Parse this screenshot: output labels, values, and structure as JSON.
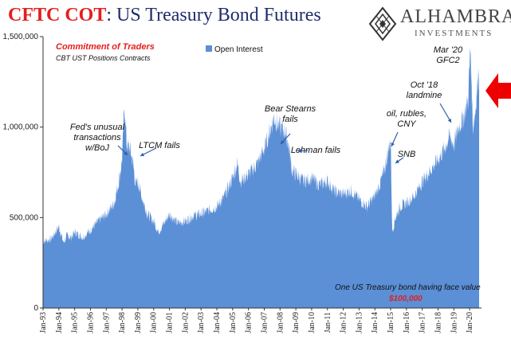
{
  "header": {
    "title_part1": "CFTC COT",
    "title_part2": ": US Treasury Bond Futures"
  },
  "logo": {
    "name": "ALHAMBRA",
    "sub": "INVESTMENTS",
    "icon": "diamond-lattice-logo-icon"
  },
  "text_box": {
    "title": "Commitment of Traders",
    "subtitle": "CBT UST Positions Contracts"
  },
  "footnote": {
    "line1": "One US Treasury bond having face value",
    "line2": "$100,000"
  },
  "colors": {
    "series": "#5b8fd6",
    "title_red": "#e41e1e",
    "title_navy": "#1f2d6b",
    "arrow_red": "#ee0000"
  },
  "chart_data": {
    "type": "area",
    "title": "CFTC COT: US Treasury Bond Futures",
    "xlabel": "",
    "ylabel": "",
    "ylim": [
      0,
      1500000
    ],
    "yticks": [
      0,
      500000,
      1000000,
      1500000
    ],
    "ytick_labels": [
      "0",
      "500,000",
      "1,000,000",
      "1,500,000"
    ],
    "xtick_labels": [
      "Jan-93",
      "Jan-94",
      "Jan-95",
      "Jan-96",
      "Jan-97",
      "Jan-98",
      "Jan-99",
      "Jan-00",
      "Jan-01",
      "Jan-02",
      "Jan-03",
      "Jan-04",
      "Jan-05",
      "Jan-06",
      "Jan-07",
      "Jan-08",
      "Jan-09",
      "Jan-10",
      "Jan-11",
      "Jan-12",
      "Jan-13",
      "Jan-14",
      "Jan-15",
      "Jan-16",
      "Jan-17",
      "Jan-18",
      "Jan-19",
      "Jan-20"
    ],
    "x_start": "Jan-93",
    "x_end": "Aug-20",
    "legend": {
      "position": "top",
      "label": "Open Interest"
    },
    "series": [
      {
        "name": "Open Interest",
        "x": [
          1993.0,
          1993.5,
          1994.0,
          1994.3,
          1994.5,
          1994.8,
          1995.0,
          1995.5,
          1996.0,
          1996.5,
          1997.0,
          1997.5,
          1997.8,
          1998.0,
          1998.15,
          1998.3,
          1998.5,
          1998.7,
          1998.85,
          1999.0,
          1999.3,
          1999.6,
          2000.0,
          2000.3,
          2000.6,
          2001.0,
          2001.5,
          2002.0,
          2002.5,
          2003.0,
          2003.5,
          2004.0,
          2004.5,
          2005.0,
          2005.3,
          2005.5,
          2006.0,
          2006.5,
          2007.0,
          2007.3,
          2007.6,
          2008.0,
          2008.3,
          2008.55,
          2008.75,
          2009.0,
          2009.5,
          2010.0,
          2010.5,
          2011.0,
          2011.5,
          2012.0,
          2012.5,
          2013.0,
          2013.5,
          2014.0,
          2014.3,
          2014.6,
          2014.85,
          2015.0,
          2015.1,
          2015.3,
          2015.6,
          2016.0,
          2016.5,
          2017.0,
          2017.5,
          2018.0,
          2018.4,
          2018.75,
          2019.0,
          2019.3,
          2019.6,
          2019.9,
          2020.05,
          2020.2,
          2020.35,
          2020.5,
          2020.6
        ],
        "values": [
          370000,
          380000,
          450000,
          360000,
          400000,
          390000,
          420000,
          390000,
          430000,
          480000,
          520000,
          580000,
          700000,
          820000,
          1120000,
          900000,
          880000,
          800000,
          680000,
          700000,
          600000,
          520000,
          480000,
          420000,
          460000,
          520000,
          470000,
          480000,
          510000,
          520000,
          540000,
          560000,
          620000,
          720000,
          800000,
          700000,
          740000,
          790000,
          880000,
          960000,
          1050000,
          1000000,
          980000,
          900000,
          760000,
          740000,
          700000,
          720000,
          680000,
          700000,
          640000,
          630000,
          650000,
          600000,
          560000,
          620000,
          680000,
          760000,
          870000,
          930000,
          420000,
          500000,
          560000,
          580000,
          620000,
          700000,
          760000,
          820000,
          880000,
          950000,
          900000,
          1000000,
          1050000,
          1150000,
          1450000,
          1000000,
          1080000,
          1250000,
          1300000
        ]
      }
    ],
    "annotations": [
      {
        "label": [
          "Fed's unusual",
          "transactions",
          "w/BoJ"
        ],
        "x": 1998.1,
        "y": 880000
      },
      {
        "label": [
          "LTCM fails"
        ],
        "x": 1998.85,
        "y": 820000
      },
      {
        "label": [
          "Bear Stearns",
          "fails"
        ],
        "x": 2008.1,
        "y": 1060000
      },
      {
        "label": [
          "Lehman fails"
        ],
        "x": 2008.75,
        "y": 830000
      },
      {
        "label": [
          "oil, rubles,",
          "CNY"
        ],
        "x": 2014.9,
        "y": 860000
      },
      {
        "label": [
          "SNB"
        ],
        "x": 2015.05,
        "y": 780000
      },
      {
        "label": [
          "Oct '18",
          "landmine"
        ],
        "x": 2018.75,
        "y": 1000000
      },
      {
        "label": [
          "Mar '20",
          "GFC2"
        ],
        "x": 2020.05,
        "y": 1460000
      }
    ]
  }
}
